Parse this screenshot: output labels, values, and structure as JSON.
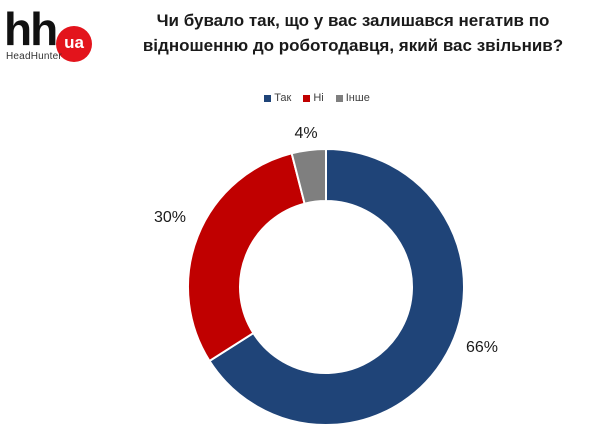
{
  "logo": {
    "mark": "hh",
    "badge": "ua",
    "subtitle": "HeadHunter"
  },
  "title": "Чи бувало так, що у вас залишався негатив по відношенню до роботодавця, який вас звільнив?",
  "chart_data": {
    "type": "pie",
    "variant": "donut",
    "title": "Чи бувало так, що у вас залишався негатив по відношенню до роботодавця, який вас звільнив?",
    "legend_position": "top",
    "unit": "%",
    "categories": [
      "Так",
      "Ні",
      "Інше"
    ],
    "values": [
      66,
      30,
      4
    ],
    "labels": [
      "66%",
      "30%",
      "4%"
    ],
    "colors": [
      "#1f4478",
      "#c00000",
      "#7f7f7f"
    ]
  }
}
